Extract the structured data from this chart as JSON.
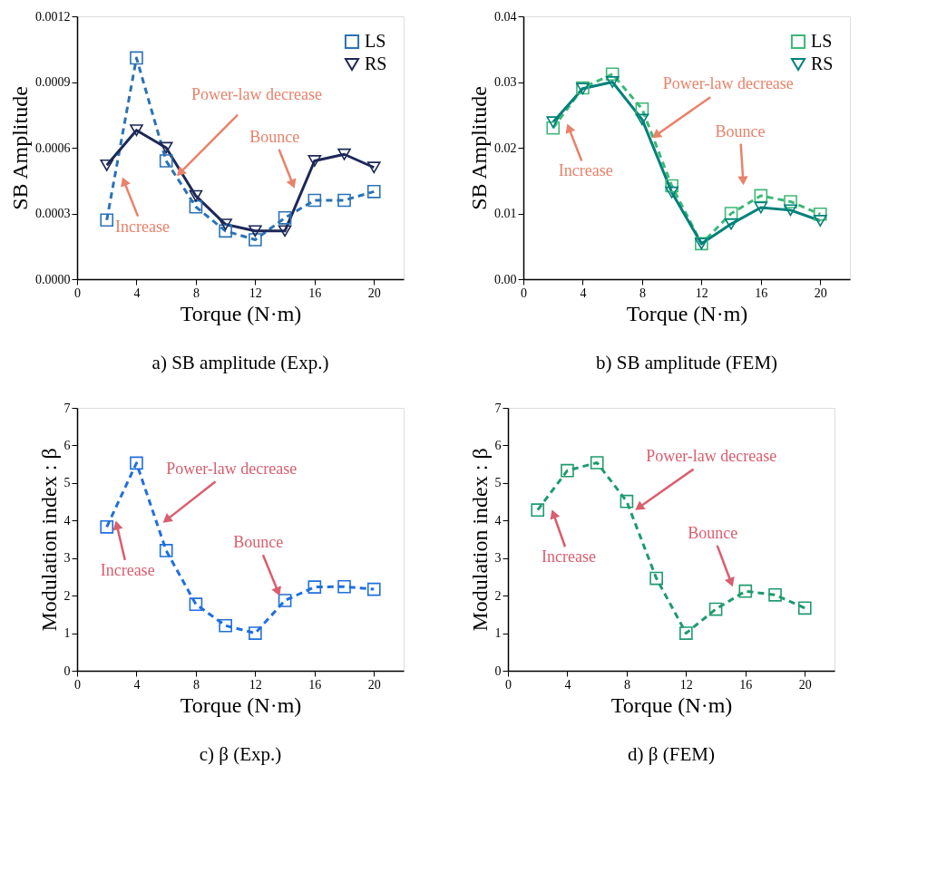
{
  "chart_data": [
    {
      "type": "line",
      "title": "a) SB amplitude (Exp.)",
      "xlabel": "Torque (N·m)",
      "ylabel": "SB Amplitude",
      "x": [
        2,
        4,
        6,
        8,
        10,
        12,
        14,
        16,
        18,
        20
      ],
      "xlim": [
        0,
        22
      ],
      "xticks": [
        0,
        4,
        8,
        12,
        16,
        20
      ],
      "ylim": [
        0,
        0.0012
      ],
      "yticks": [
        {
          "value": 0,
          "label": "0.0000"
        },
        {
          "value": 0.0003,
          "label": "0.0003"
        },
        {
          "value": 0.0006,
          "label": "0.0006"
        },
        {
          "value": 0.0009,
          "label": "0.0009"
        },
        {
          "value": 0.0012,
          "label": "0.0012"
        }
      ],
      "legend": "top right",
      "grid": false,
      "series": [
        {
          "name": "LS",
          "color": "#2a72b5",
          "marker": "square",
          "line_style": "dashed",
          "values": [
            0.00027,
            0.00101,
            0.00054,
            0.00033,
            0.00022,
            0.00018,
            0.00028,
            0.00036,
            0.00036,
            0.0004
          ]
        },
        {
          "name": "RS",
          "color": "#1c2857",
          "marker": "triangle",
          "line_style": "solid",
          "values": [
            0.00052,
            0.00068,
            0.0006,
            0.00038,
            0.00025,
            0.00022,
            0.00022,
            0.00054,
            0.00057,
            0.00051
          ]
        }
      ],
      "annotations": [
        {
          "text": "Increase",
          "x": 3.2,
          "y": 0.00044
        },
        {
          "text": "Power-law decrease",
          "x": 7,
          "y": 0.00049
        },
        {
          "text": "Bounce",
          "x": 14.5,
          "y": 0.00044
        }
      ]
    },
    {
      "type": "line",
      "title": "b) SB amplitude (FEM)",
      "xlabel": "Torque (N·m)",
      "ylabel": "SB Amplitude",
      "x": [
        2,
        4,
        6,
        8,
        10,
        12,
        14,
        16,
        18,
        20
      ],
      "xlim": [
        0,
        22
      ],
      "xticks": [
        0,
        4,
        8,
        12,
        16,
        20
      ],
      "ylim": [
        0,
        0.04
      ],
      "yticks": [
        {
          "value": 0,
          "label": "0.00"
        },
        {
          "value": 0.01,
          "label": "0.01"
        },
        {
          "value": 0.02,
          "label": "0.02"
        },
        {
          "value": 0.03,
          "label": "0.03"
        },
        {
          "value": 0.04,
          "label": "0.04"
        }
      ],
      "legend": "top right",
      "grid": false,
      "series": [
        {
          "name": "LS",
          "color": "#3cb878",
          "marker": "square",
          "line_style": "dashed",
          "values": [
            0.023,
            0.0291,
            0.0312,
            0.0259,
            0.0142,
            0.0054,
            0.01,
            0.0127,
            0.0118,
            0.0099
          ]
        },
        {
          "name": "RS",
          "color": "#00807a",
          "marker": "triangle",
          "line_style": "solid",
          "values": [
            0.0239,
            0.029,
            0.03,
            0.0243,
            0.0132,
            0.0054,
            0.0084,
            0.0109,
            0.0105,
            0.0089
          ]
        }
      ],
      "annotations": [
        {
          "text": "Increase",
          "x": 3.1,
          "y": 0.0228
        },
        {
          "text": "Power-law decrease",
          "x": 9.0,
          "y": 0.022
        },
        {
          "text": "Bounce",
          "x": 14.8,
          "y": 0.0152
        }
      ]
    },
    {
      "type": "line",
      "title": "c) β (Exp.)",
      "xlabel": "Torque (N·m)",
      "ylabel": "Modulation index : β",
      "x": [
        2,
        4,
        6,
        8,
        10,
        12,
        14,
        16,
        18,
        20
      ],
      "xlim": [
        0,
        22
      ],
      "xticks": [
        0,
        4,
        8,
        12,
        16,
        20
      ],
      "ylim": [
        0,
        7
      ],
      "yticks": [
        0,
        1,
        2,
        3,
        4,
        5,
        6,
        7
      ],
      "legend": false,
      "grid": false,
      "series": [
        {
          "color": "#1f6fde",
          "marker": "square",
          "line_style": "dashed",
          "values": [
            3.83,
            5.53,
            3.2,
            1.77,
            1.2,
            1.0,
            1.87,
            2.23,
            2.24,
            2.17
          ]
        }
      ],
      "annotations": [
        {
          "text": "Increase",
          "x": 2.7,
          "y": 3.84
        },
        {
          "text": "Power-law decrease",
          "x": 6.1,
          "y": 4.04
        },
        {
          "text": "Bounce",
          "x": 13.5,
          "y": 2.14
        }
      ]
    },
    {
      "type": "line",
      "title": "d) β (FEM)",
      "xlabel": "Torque (N·m)",
      "ylabel": "Modulation index : β",
      "x": [
        2,
        4,
        6,
        8,
        10,
        12,
        14,
        16,
        18,
        20
      ],
      "xlim": [
        0,
        22
      ],
      "xticks": [
        0,
        4,
        8,
        12,
        16,
        20
      ],
      "ylim": [
        0,
        7
      ],
      "yticks": [
        0,
        1,
        2,
        3,
        4,
        5,
        6,
        7
      ],
      "legend": false,
      "grid": false,
      "series": [
        {
          "color": "#1f9a6e",
          "marker": "square",
          "line_style": "dashed",
          "values": [
            4.28,
            5.33,
            5.54,
            4.51,
            2.46,
            1.0,
            1.64,
            2.12,
            2.02,
            1.67
          ]
        }
      ],
      "annotations": [
        {
          "text": "Increase",
          "x": 3.1,
          "y": 4.14
        },
        {
          "text": "Power-law decrease",
          "x": 8.9,
          "y": 4.37
        },
        {
          "text": "Bounce",
          "x": 15.0,
          "y": 2.39
        }
      ]
    }
  ]
}
